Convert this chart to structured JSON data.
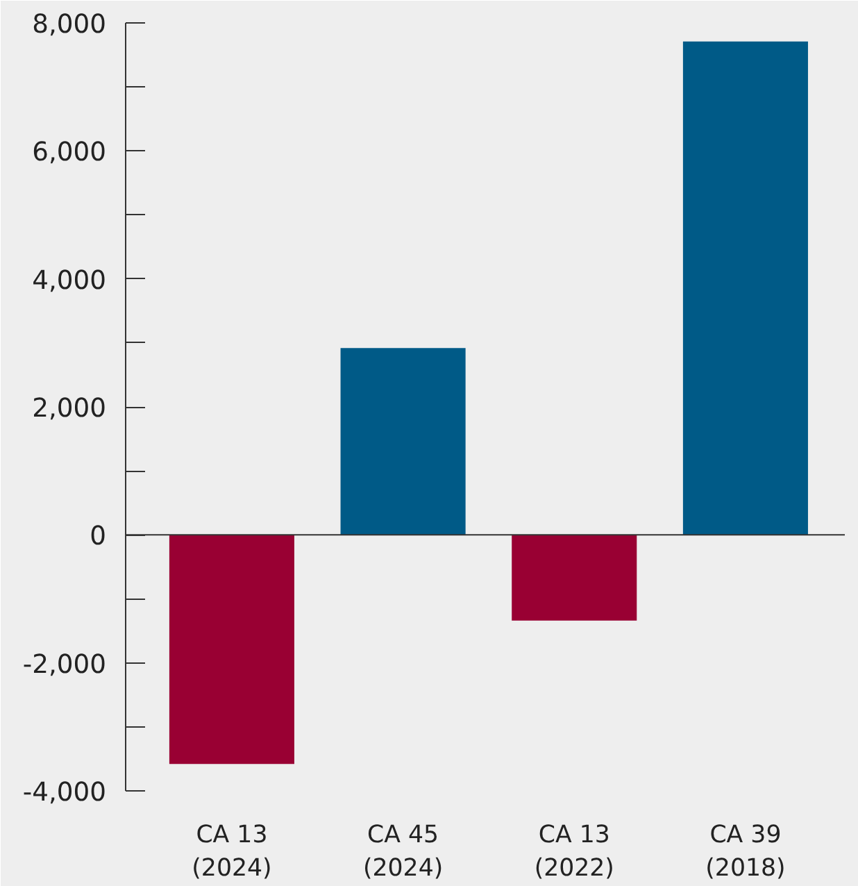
{
  "chart_data": {
    "type": "bar",
    "categories": [
      "CA 13\n(2024)",
      "CA 45\n(2024)",
      "CA 13\n(2022)",
      "CA 39\n(2018)"
    ],
    "values": [
      -3580,
      2920,
      -1340,
      7710
    ],
    "colors": [
      "#990033",
      "#005a87",
      "#990033",
      "#005a87"
    ],
    "ylim": [
      -4000,
      8000
    ],
    "yticks": [
      {
        "value": -4000,
        "label": "-4,000"
      },
      {
        "value": -3000,
        "label": null
      },
      {
        "value": -2000,
        "label": "-2,000"
      },
      {
        "value": -1000,
        "label": null
      },
      0,
      {
        "value": 1000,
        "label": null
      },
      {
        "value": 2000,
        "label": "2,000"
      },
      {
        "value": 3000,
        "label": null
      },
      {
        "value": 4000,
        "label": "4,000"
      },
      {
        "value": 5000,
        "label": null
      },
      {
        "value": 6000,
        "label": "6,000"
      },
      {
        "value": 7000,
        "label": null
      },
      {
        "value": 8000,
        "label": "8,000"
      }
    ]
  }
}
